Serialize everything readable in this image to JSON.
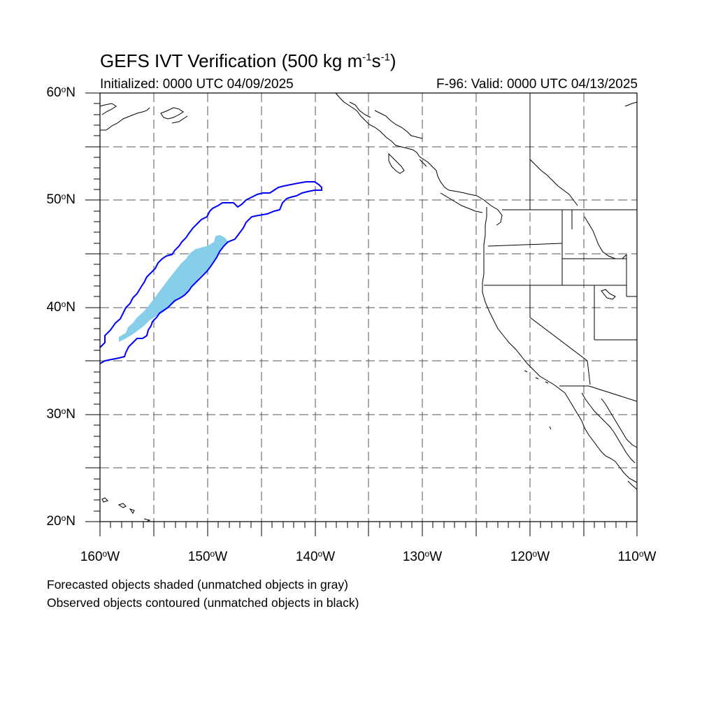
{
  "title": {
    "prefix": "GEFS IVT Verification (500 kg m",
    "exp1": "-1",
    "mid": "s",
    "exp2": "-1",
    "suffix": ")"
  },
  "initialized": "Initialized: 0000 UTC 04/09/2025",
  "valid": "F-96: Valid: 0000 UTC 04/13/2025",
  "lat_labels": [
    "60",
    "50",
    "40",
    "30",
    "20"
  ],
  "lat_suffix": "N",
  "lon_labels": [
    "160",
    "150",
    "140",
    "130",
    "120",
    "110"
  ],
  "lon_suffix": "W",
  "captions": {
    "line1": "Forecasted objects shaded (unmatched objects in gray)",
    "line2": "Observed objects contoured (unmatched objects in black)"
  },
  "colors": {
    "forecast_shading": "#87ceeb",
    "observed_contour": "#0000ff",
    "coastline": "#000000",
    "gridline": "#555555"
  },
  "map_extent": {
    "lon_range": [
      -160,
      -110
    ],
    "lat_range": [
      20,
      60
    ],
    "projection": "cylindrical equidistant"
  }
}
